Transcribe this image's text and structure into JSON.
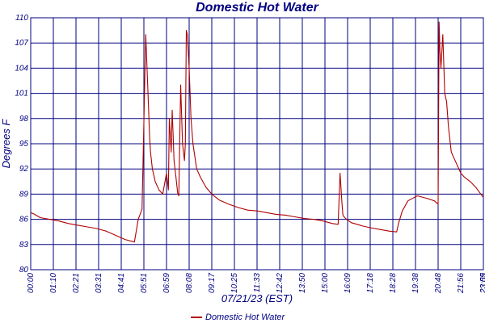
{
  "chart_data": {
    "type": "line",
    "title": "Domestic Hot Water",
    "xlabel": "07/21/23 (EST)",
    "ylabel": "Degrees F",
    "ylim": [
      80,
      110
    ],
    "xlim_hours": [
      0,
      24
    ],
    "y_ticks": [
      "80",
      "83",
      "86",
      "89",
      "92",
      "95",
      "98",
      "101",
      "104",
      "107",
      "110"
    ],
    "x_ticks": [
      "00:00",
      "01:10",
      "02:21",
      "03:31",
      "04:41",
      "05:51",
      "06:59",
      "08:08",
      "09:17",
      "10:25",
      "11:33",
      "12:42",
      "13:50",
      "15:00",
      "16:09",
      "17:18",
      "18:28",
      "19:38",
      "20:48",
      "21:56",
      "23:05",
      "23:59"
    ],
    "grid": true,
    "legend_position": "bottom-center",
    "colors": {
      "series": "#b00000",
      "grid": "#000080",
      "text": "#000080"
    },
    "series": [
      {
        "name": "Domestic Hot Water",
        "x_hours": [
          0.0,
          0.2,
          0.5,
          1.0,
          1.5,
          2.0,
          2.5,
          3.0,
          3.5,
          4.0,
          4.5,
          5.0,
          5.5,
          5.7,
          5.9,
          6.1,
          6.2,
          6.3,
          6.35,
          6.45,
          6.6,
          6.8,
          7.0,
          7.2,
          7.3,
          7.35,
          7.45,
          7.5,
          7.55,
          7.6,
          7.65,
          7.7,
          7.75,
          7.8,
          7.85,
          7.95,
          8.05,
          8.15,
          8.2,
          8.25,
          8.3,
          8.4,
          8.5,
          8.6,
          8.7,
          8.8,
          9.0,
          9.3,
          9.6,
          10.0,
          10.5,
          11.0,
          11.5,
          12.0,
          12.5,
          13.0,
          13.5,
          14.0,
          14.5,
          15.0,
          15.5,
          16.0,
          16.3,
          16.4,
          16.5,
          16.55,
          16.65,
          16.8,
          17.0,
          17.3,
          17.6,
          18.0,
          18.5,
          19.0,
          19.4,
          19.5,
          19.7,
          20.0,
          20.5,
          21.0,
          21.4,
          21.5,
          21.6,
          21.65,
          21.7,
          21.75,
          21.85,
          21.95,
          22.05,
          22.15,
          22.3,
          22.5,
          22.8,
          23.0,
          23.3,
          23.6,
          23.8,
          24.0
        ],
        "values": [
          86.8,
          86.6,
          86.2,
          86.0,
          85.8,
          85.5,
          85.3,
          85.1,
          84.9,
          84.6,
          84.1,
          83.6,
          83.3,
          86.0,
          87.2,
          108.0,
          102.0,
          96.0,
          94.0,
          92.0,
          90.5,
          89.5,
          89.0,
          91.5,
          89.5,
          98.0,
          94.0,
          99.0,
          96.0,
          93.0,
          92.0,
          91.0,
          90.0,
          89.0,
          88.8,
          102.0,
          95.0,
          93.0,
          95.0,
          108.5,
          108.0,
          104.0,
          98.0,
          95.0,
          93.5,
          92.0,
          91.0,
          89.8,
          89.0,
          88.3,
          87.8,
          87.4,
          87.1,
          87.0,
          86.8,
          86.6,
          86.5,
          86.3,
          86.1,
          86.0,
          85.8,
          85.5,
          85.4,
          91.5,
          88.0,
          86.5,
          86.2,
          85.9,
          85.6,
          85.4,
          85.2,
          85.0,
          84.8,
          84.6,
          84.5,
          85.5,
          87.0,
          88.2,
          88.8,
          88.5,
          88.2,
          88.0,
          87.8,
          109.5,
          106.0,
          104.0,
          108.0,
          101.0,
          100.0,
          97.0,
          94.0,
          93.0,
          91.5,
          91.0,
          90.5,
          89.8,
          89.2,
          88.6
        ]
      }
    ]
  }
}
